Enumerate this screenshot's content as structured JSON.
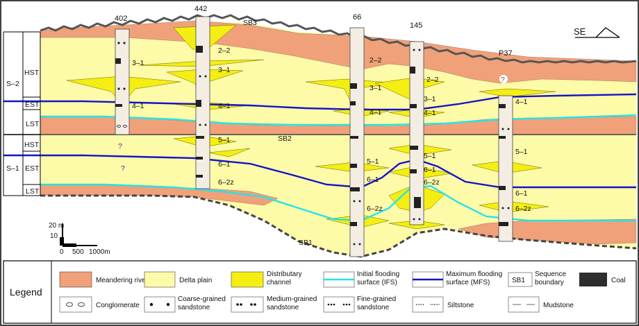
{
  "wells": [
    "402",
    "442",
    "66",
    "145",
    "P37"
  ],
  "compass": "SE",
  "sequences": [
    "S–2",
    "S–1"
  ],
  "systems_tracts": {
    "s2": [
      "HST",
      "EST",
      "LST"
    ],
    "s1": [
      "HST",
      "EST",
      "LST"
    ]
  },
  "boundaries": [
    "SB3",
    "SB2",
    "SB1"
  ],
  "unit_labels": {
    "u402": [
      "3–1",
      "4–1"
    ],
    "u442": [
      "2–2",
      "3–1",
      "4–1",
      "5–1",
      "6–1",
      "6–2z"
    ],
    "u66": [
      "2–2",
      "3–1",
      "4–1",
      "5–1",
      "6–1",
      "6–2z"
    ],
    "u145": [
      "2–2",
      "3–1",
      "4–1",
      "5–1",
      "6–1",
      "6–2z"
    ],
    "uP37": [
      "4–1",
      "5–1",
      "6–1",
      "6–2z"
    ]
  },
  "unknown_mark": "?",
  "scale": {
    "vertical": [
      "20 m",
      "10",
      "0"
    ],
    "horizontal": [
      "500",
      "1000m"
    ]
  },
  "legend": {
    "title": "Legend",
    "items": [
      {
        "label": "Meandering river",
        "color": "#f0a179"
      },
      {
        "label": "Delta plain",
        "color": "#fdfaa8"
      },
      {
        "label": "Distributary channel",
        "color": "#f4ee12"
      },
      {
        "label": "Initial flooding surface (IFS)",
        "color": "#24e3ea"
      },
      {
        "label": "Maximum flooding surface (MFS)",
        "color": "#1414c8"
      },
      {
        "label": "Sequence boundary",
        "symbol": "SB1"
      },
      {
        "label": "Coal",
        "color": "#2e2e2e"
      },
      {
        "label": "Conglomerate"
      },
      {
        "label": "Coarse-grained sandstone"
      },
      {
        "label": "Medium-grained sandstone"
      },
      {
        "label": "Fine-grained sandstone"
      },
      {
        "label": "Siltstone"
      },
      {
        "label": "Mudstone"
      }
    ]
  }
}
